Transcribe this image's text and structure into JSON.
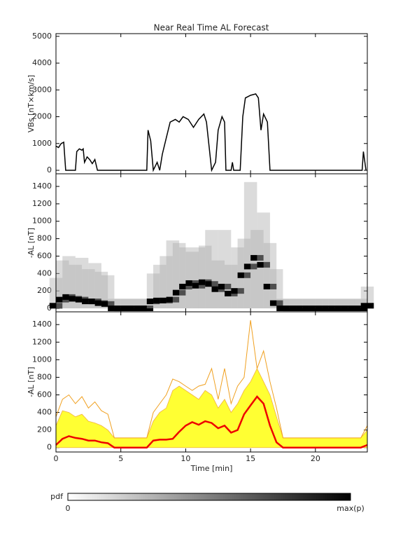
{
  "chart_data": [
    {
      "type": "line",
      "title": "Near Real Time AL Forecast",
      "y_label": "VBs [nT×km/s]",
      "x": [
        0,
        0.2,
        0.4,
        0.6,
        0.75,
        1.5,
        1.6,
        1.8,
        2.0,
        2.1,
        2.2,
        2.4,
        2.6,
        2.8,
        3.0,
        3.2,
        7.0,
        7.1,
        7.3,
        7.5,
        7.8,
        8.0,
        8.2,
        8.5,
        8.8,
        9.2,
        9.5,
        9.8,
        10.2,
        10.6,
        11.0,
        11.4,
        11.6,
        11.8,
        12.0,
        12.3,
        12.5,
        12.8,
        13.0,
        13.1,
        13.5,
        13.6,
        13.7,
        14.2,
        14.4,
        14.6,
        15.0,
        15.4,
        15.6,
        15.8,
        16.0,
        16.3,
        16.5,
        23.6,
        23.7,
        23.9
      ],
      "series": [
        {
          "color": "#000000",
          "values": [
            900,
            850,
            1000,
            1050,
            0,
            0,
            700,
            800,
            750,
            800,
            300,
            500,
            400,
            250,
            400,
            0,
            0,
            1500,
            1100,
            0,
            300,
            0,
            600,
            1200,
            1800,
            1900,
            1800,
            2000,
            1900,
            1600,
            1900,
            2100,
            1800,
            900,
            0,
            300,
            1500,
            2000,
            1800,
            0,
            0,
            300,
            0,
            0,
            2000,
            2700,
            2800,
            2850,
            2700,
            1500,
            2100,
            1800,
            0,
            0,
            700,
            0
          ]
        }
      ],
      "xlim": [
        0,
        24
      ],
      "xticks": [
        0,
        5,
        10,
        15,
        20
      ],
      "ylim": [
        -130,
        5100
      ],
      "yticks": [
        0,
        1000,
        2000,
        3000,
        4000,
        5000
      ]
    },
    {
      "type": "density",
      "y_label": "-AL [nT]",
      "x": [
        0,
        0.5,
        1,
        1.5,
        2,
        2.5,
        3,
        3.5,
        4,
        4.5,
        5,
        5.5,
        6,
        6.5,
        7,
        7.5,
        8,
        8.5,
        9,
        9.5,
        10,
        10.5,
        11,
        11.5,
        12,
        12.5,
        13,
        13.5,
        14,
        14.5,
        15,
        15.5,
        16,
        16.5,
        17,
        17.5,
        18,
        18.5,
        19,
        19.5,
        20,
        20.5,
        21,
        21.5,
        22,
        22.5,
        23,
        23.5,
        24
      ],
      "series": [
        {
          "color": "#000000",
          "values": [
            30,
            100,
            130,
            110,
            100,
            80,
            80,
            60,
            50,
            0,
            0,
            0,
            0,
            0,
            0,
            80,
            90,
            90,
            100,
            180,
            250,
            290,
            260,
            300,
            280,
            220,
            250,
            170,
            200,
            380,
            480,
            580,
            500,
            250,
            60,
            0,
            0,
            0,
            0,
            0,
            0,
            0,
            0,
            0,
            0,
            0,
            0,
            0,
            30
          ]
        },
        {
          "color": "#b0b0b0",
          "values": [
            350,
            550,
            600,
            500,
            580,
            450,
            520,
            420,
            380,
            110,
            110,
            110,
            110,
            110,
            110,
            400,
            500,
            600,
            780,
            750,
            700,
            650,
            700,
            720,
            900,
            550,
            900,
            500,
            700,
            800,
            1450,
            900,
            1100,
            750,
            450,
            110,
            110,
            110,
            110,
            110,
            110,
            110,
            110,
            110,
            110,
            110,
            110,
            110,
            250
          ]
        }
      ],
      "xlim": [
        0,
        24
      ],
      "xticks": [
        0,
        5,
        10,
        15,
        20
      ],
      "ylim": [
        -40,
        1545
      ],
      "yticks": [
        0,
        200,
        400,
        600,
        800,
        1000,
        1200,
        1400
      ]
    },
    {
      "type": "band",
      "y_label": "-AL [nT]",
      "x_label": "Time [min]",
      "x": [
        0,
        0.5,
        1,
        1.5,
        2,
        2.5,
        3,
        3.5,
        4,
        4.5,
        5,
        5.5,
        6,
        6.5,
        7,
        7.5,
        8,
        8.5,
        9,
        9.5,
        10,
        10.5,
        11,
        11.5,
        12,
        12.5,
        13,
        13.5,
        14,
        14.5,
        15,
        15.5,
        16,
        16.5,
        17,
        17.5,
        18,
        18.5,
        19,
        19.5,
        20,
        20.5,
        21,
        21.5,
        22,
        22.5,
        23,
        23.5,
        24
      ],
      "series": [
        {
          "color": "#ffff33",
          "values": [
            250,
            420,
            400,
            350,
            380,
            300,
            280,
            250,
            200,
            110,
            110,
            110,
            110,
            110,
            110,
            300,
            400,
            450,
            650,
            700,
            650,
            600,
            550,
            650,
            600,
            450,
            550,
            400,
            500,
            650,
            750,
            900,
            750,
            600,
            350,
            110,
            110,
            110,
            110,
            110,
            110,
            110,
            110,
            110,
            110,
            110,
            110,
            110,
            200
          ]
        },
        {
          "color": "#f0a020",
          "values": [
            350,
            550,
            600,
            500,
            580,
            450,
            520,
            420,
            380,
            110,
            110,
            110,
            110,
            110,
            110,
            400,
            500,
            600,
            780,
            750,
            700,
            650,
            700,
            720,
            900,
            550,
            900,
            500,
            700,
            800,
            1450,
            900,
            1100,
            750,
            450,
            110,
            110,
            110,
            110,
            110,
            110,
            110,
            110,
            110,
            110,
            110,
            110,
            110,
            250
          ]
        },
        {
          "color": "#ee0000",
          "values": [
            30,
            100,
            130,
            110,
            100,
            80,
            80,
            60,
            50,
            0,
            0,
            0,
            0,
            0,
            0,
            80,
            90,
            90,
            100,
            180,
            250,
            290,
            260,
            300,
            280,
            220,
            250,
            170,
            200,
            380,
            480,
            580,
            500,
            250,
            60,
            0,
            0,
            0,
            0,
            0,
            0,
            0,
            0,
            0,
            0,
            0,
            0,
            0,
            30
          ]
        }
      ],
      "xlim": [
        0,
        24
      ],
      "xticks": [
        0,
        5,
        10,
        15,
        20
      ],
      "ylim": [
        -50,
        1545
      ],
      "yticks": [
        0,
        200,
        400,
        600,
        800,
        1000,
        1200,
        1400
      ]
    }
  ],
  "colorbar": {
    "label": "pdf",
    "min_label": "0",
    "max_label": "max(p)"
  }
}
